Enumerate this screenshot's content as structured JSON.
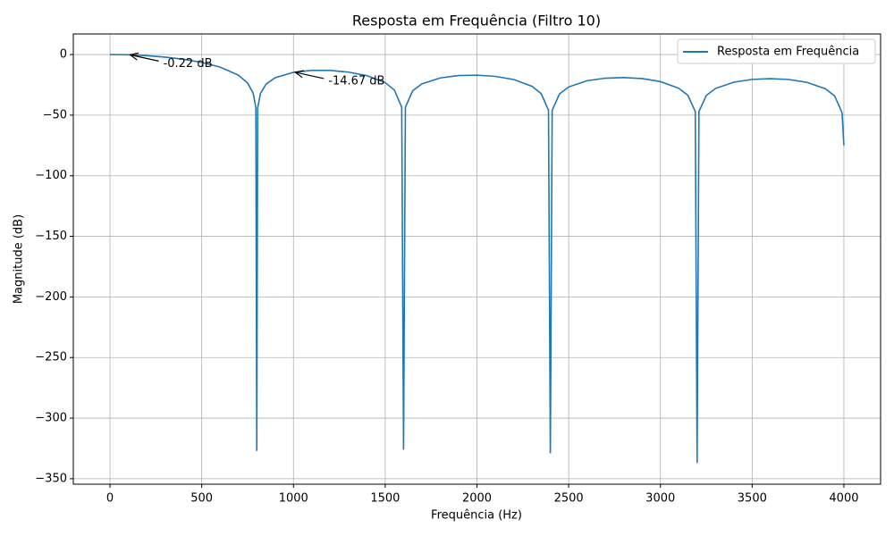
{
  "chart_data": {
    "type": "line",
    "title": "Resposta em Frequência (Filtro 10)",
    "x_label": "Frequência (Hz)",
    "y_label": "Magnitude (dB)",
    "x": [
      0,
      100,
      200,
      300,
      400,
      500,
      600,
      700,
      750,
      780,
      795,
      800,
      805,
      820,
      850,
      900,
      1000,
      1100,
      1200,
      1300,
      1400,
      1500,
      1550,
      1590,
      1600,
      1610,
      1650,
      1700,
      1800,
      1900,
      2000,
      2100,
      2200,
      2300,
      2350,
      2390,
      2400,
      2410,
      2450,
      2500,
      2600,
      2700,
      2800,
      2900,
      3000,
      3100,
      3150,
      3190,
      3200,
      3210,
      3250,
      3300,
      3400,
      3500,
      3600,
      3700,
      3800,
      3900,
      3950,
      3990,
      4000
    ],
    "series": [
      {
        "name": "Resposta em Frequência",
        "color": "#1f77b4",
        "values": [
          0,
          -0.22,
          -0.9,
          -2.09,
          -3.89,
          -6.49,
          -10.37,
          -17.0,
          -23.5,
          -31.7,
          -43.9,
          -327,
          -44,
          -32.1,
          -24.5,
          -19.1,
          -14.67,
          -13.1,
          -13.1,
          -14.5,
          -17.4,
          -23.2,
          -29.3,
          -43.4,
          -326,
          -43.5,
          -29.8,
          -24.2,
          -19.3,
          -17.3,
          -17.0,
          -18.0,
          -20.6,
          -26.2,
          -32.2,
          -46,
          -329,
          -46,
          -32.5,
          -26.7,
          -21.6,
          -19.5,
          -19.0,
          -19.8,
          -22.3,
          -27.8,
          -33.7,
          -47,
          -337,
          -47,
          -33.8,
          -28.0,
          -22.8,
          -20.5,
          -19.9,
          -20.6,
          -23.0,
          -28.3,
          -34.2,
          -48,
          -75
        ]
      }
    ],
    "annotations": [
      {
        "text": "-0.22 dB",
        "x": 100,
        "y": -0.22
      },
      {
        "text": "-14.67 dB",
        "x": 1000,
        "y": -14.67
      }
    ],
    "xlim": [
      -200,
      4200
    ],
    "ylim": [
      -354.5,
      17
    ],
    "xticks": [
      0,
      500,
      1000,
      1500,
      2000,
      2500,
      3000,
      3500,
      4000
    ],
    "yticks": [
      {
        "value": -350,
        "label": "−350"
      },
      {
        "value": -300,
        "label": "−300"
      },
      {
        "value": -250,
        "label": "−250"
      },
      {
        "value": -200,
        "label": "−200"
      },
      {
        "value": -150,
        "label": "−150"
      },
      {
        "value": -100,
        "label": "−100"
      },
      {
        "value": -50,
        "label": "−50"
      },
      0
    ],
    "grid": true,
    "legend": "upper right"
  }
}
